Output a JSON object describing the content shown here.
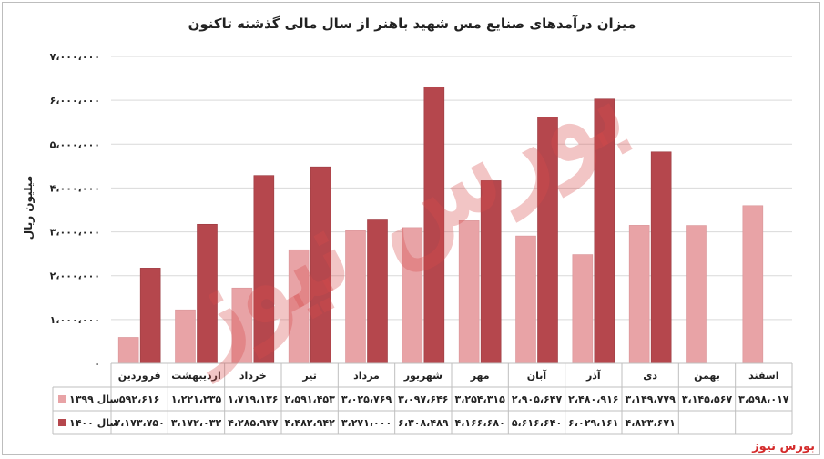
{
  "chart_data": {
    "type": "bar",
    "title": "میزان درآمدهای صنایع مس شهید باهنر از سال مالی گذشته تاکنون",
    "ylabel": "میلیون ریال",
    "xlabel": "",
    "ylim": [
      0,
      7000000
    ],
    "yticks": [
      0,
      1000000,
      2000000,
      3000000,
      4000000,
      5000000,
      6000000,
      7000000
    ],
    "ytick_labels": [
      "۰",
      "۱،۰۰۰،۰۰۰",
      "۲،۰۰۰،۰۰۰",
      "۳،۰۰۰،۰۰۰",
      "۴،۰۰۰،۰۰۰",
      "۵،۰۰۰،۰۰۰",
      "۶،۰۰۰،۰۰۰",
      "۷،۰۰۰،۰۰۰"
    ],
    "grid": true,
    "legend": "table-left",
    "categories": [
      "فروردین",
      "اردیبهشت",
      "خرداد",
      "تیر",
      "مرداد",
      "شهریور",
      "مهر",
      "آبان",
      "آذر",
      "دی",
      "بهمن",
      "اسفند"
    ],
    "series": [
      {
        "name": "سال ۱۳۹۹",
        "color": "#e8a3a6",
        "values": [
          592616,
          1221235,
          1719136,
          2591453,
          3025769,
          3097646,
          3254315,
          2905647,
          2480916,
          3149779,
          3145567,
          3598017
        ],
        "labels": [
          "۵۹۲،۶۱۶",
          "۱،۲۲۱،۲۳۵",
          "۱،۷۱۹،۱۳۶",
          "۲،۵۹۱،۴۵۳",
          "۳،۰۲۵،۷۶۹",
          "۳،۰۹۷،۶۴۶",
          "۳،۲۵۴،۳۱۵",
          "۲،۹۰۵،۶۴۷",
          "۲،۴۸۰،۹۱۶",
          "۳،۱۴۹،۷۷۹",
          "۳،۱۴۵،۵۶۷",
          "۳،۵۹۸،۰۱۷"
        ]
      },
      {
        "name": "سال ۱۴۰۰",
        "color": "#b5474d",
        "values": [
          2173750,
          3172032,
          4285947,
          4482942,
          3271000,
          6308489,
          4166680,
          5616640,
          6029161,
          4823671,
          null,
          null
        ],
        "labels": [
          "۲،۱۷۳،۷۵۰",
          "۳،۱۷۲،۰۳۲",
          "۴،۲۸۵،۹۴۷",
          "۴،۴۸۲،۹۴۲",
          "۳،۲۷۱،۰۰۰",
          "۶،۳۰۸،۴۸۹",
          "۴،۱۶۶،۶۸۰",
          "۵،۶۱۶،۶۴۰",
          "۶،۰۲۹،۱۶۱",
          "۴،۸۲۳،۶۷۱",
          "",
          ""
        ]
      }
    ]
  },
  "watermark": "بورس نیوز",
  "source": "بورس نیوز"
}
